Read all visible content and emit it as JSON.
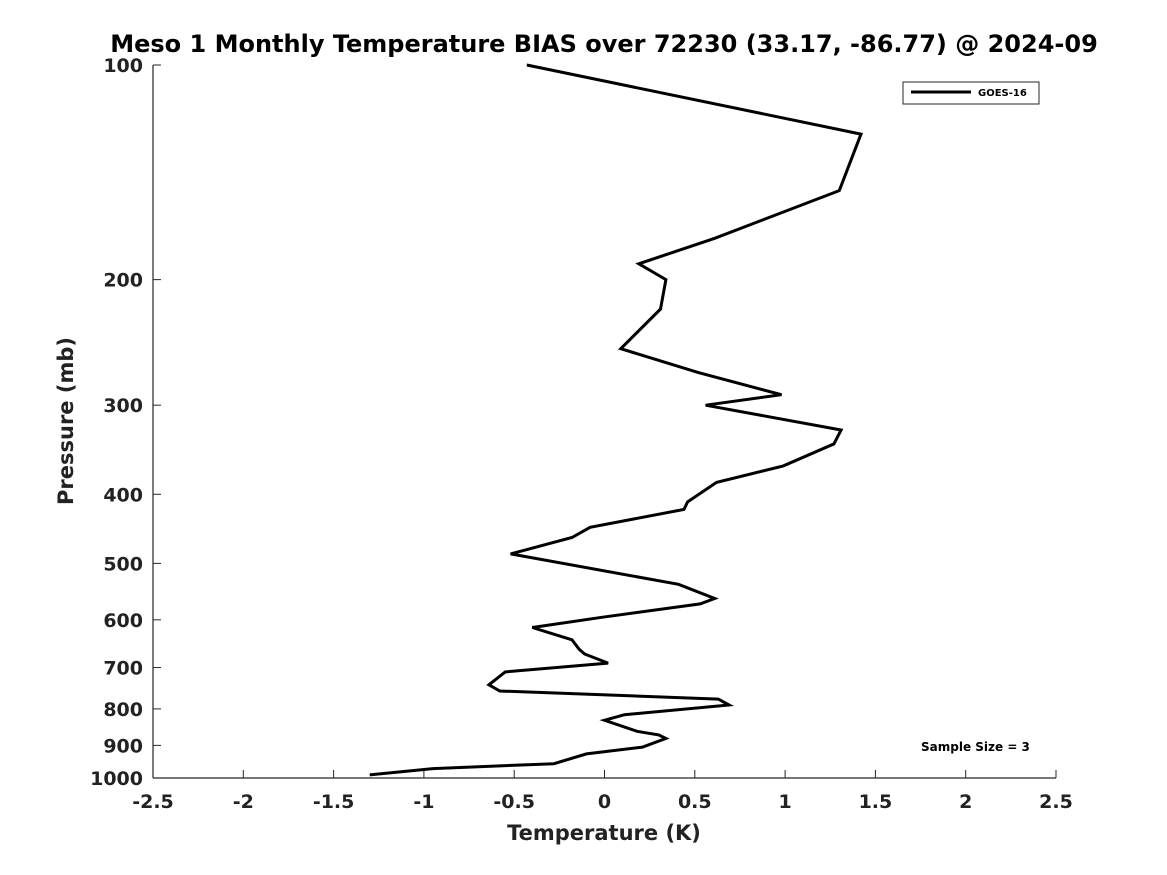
{
  "chart_data": {
    "type": "line",
    "title": "Meso 1 Monthly Temperature BIAS over 72230 (33.17, -86.77) @ 2024-09",
    "xlabel": "Temperature (K)",
    "ylabel": "Pressure (mb)",
    "xlim": [
      -2.5,
      2.5
    ],
    "ylim": [
      100,
      1000
    ],
    "y_scale": "log",
    "y_reversed": true,
    "x_ticks": [
      -2.5,
      -2,
      -1.5,
      -1,
      -0.5,
      0,
      0.5,
      1,
      1.5,
      2,
      2.5
    ],
    "x_tick_labels": [
      "-2.5",
      "-2",
      "-1.5",
      "-1",
      "-0.5",
      "0",
      "0.5",
      "1",
      "1.5",
      "2",
      "2.5"
    ],
    "y_ticks": [
      100,
      200,
      300,
      400,
      500,
      600,
      700,
      800,
      900,
      1000
    ],
    "y_tick_labels": [
      "100",
      "200",
      "300",
      "400",
      "500",
      "600",
      "700",
      "800",
      "900",
      "1000"
    ],
    "grid": false,
    "legend_position": "top-right",
    "series": [
      {
        "name": "GOES-16",
        "color": "#000000",
        "points": [
          [
            -0.43,
            100
          ],
          [
            1.42,
            125
          ],
          [
            1.3,
            150
          ],
          [
            0.61,
            175
          ],
          [
            0.19,
            190
          ],
          [
            0.34,
            200
          ],
          [
            0.31,
            220
          ],
          [
            0.09,
            250
          ],
          [
            0.52,
            270
          ],
          [
            0.98,
            290
          ],
          [
            0.56,
            300
          ],
          [
            1.31,
            325
          ],
          [
            1.27,
            340
          ],
          [
            0.99,
            365
          ],
          [
            0.62,
            385
          ],
          [
            0.46,
            410
          ],
          [
            0.44,
            420
          ],
          [
            -0.08,
            445
          ],
          [
            -0.18,
            460
          ],
          [
            -0.52,
            485
          ],
          [
            0.41,
            535
          ],
          [
            0.61,
            560
          ],
          [
            0.53,
            570
          ],
          [
            -0.01,
            595
          ],
          [
            -0.4,
            615
          ],
          [
            -0.18,
            640
          ],
          [
            -0.14,
            660
          ],
          [
            -0.11,
            670
          ],
          [
            0.02,
            690
          ],
          [
            -0.55,
            710
          ],
          [
            -0.64,
            740
          ],
          [
            -0.58,
            755
          ],
          [
            0.63,
            775
          ],
          [
            0.69,
            790
          ],
          [
            0.11,
            815
          ],
          [
            0.0,
            830
          ],
          [
            0.18,
            860
          ],
          [
            0.3,
            870
          ],
          [
            0.34,
            880
          ],
          [
            0.21,
            905
          ],
          [
            -0.1,
            925
          ],
          [
            -0.28,
            955
          ],
          [
            -0.95,
            970
          ],
          [
            -1.3,
            990
          ]
        ]
      }
    ],
    "annotations": [
      "Sample Size = 3"
    ]
  }
}
